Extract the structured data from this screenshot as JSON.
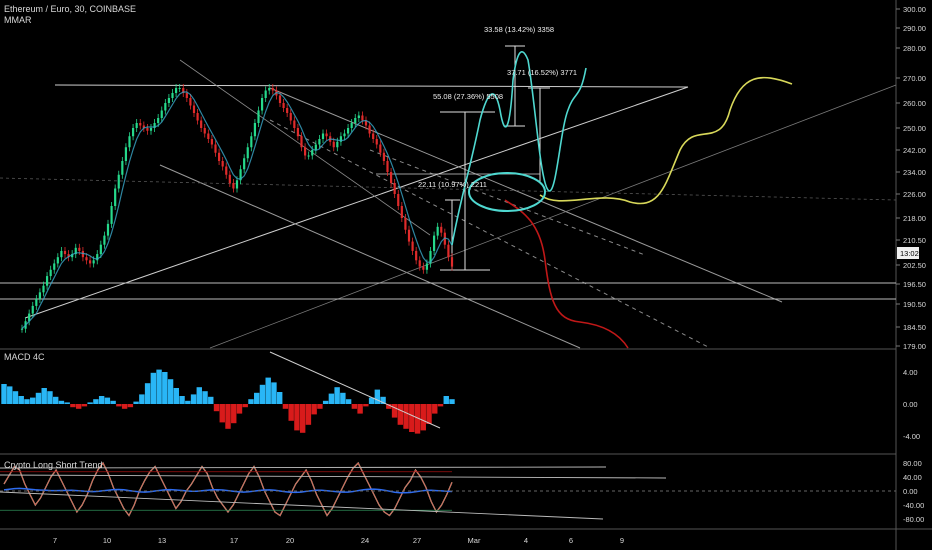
{
  "header": {
    "main_title": "Ethereum / Euro, 30, COINBASE",
    "indicator_1": "MMAR",
    "macd_title": "MACD 4C",
    "ls_title": "Crypto Long Short Trend"
  },
  "price_badge": "13:02",
  "x_axis_labels": [
    "7",
    "10",
    "13",
    "17",
    "20",
    "24",
    "27",
    "Mar",
    "4",
    "6",
    "9"
  ],
  "annotations": {
    "target_1": "33.58 (13.42%) 3358",
    "target_2": "37.71 (16.52%) 3771",
    "target_3": "55.08 (27.36%) 5508",
    "target_4": "22.11 (10.97%) 2211"
  },
  "chart_data": [
    {
      "type": "line",
      "pane": "price",
      "yticks": [
        300.0,
        290.0,
        280.0,
        270.0,
        260.0,
        250.0,
        242.0,
        234.0,
        226.0,
        218.0,
        210.5,
        202.5,
        196.5,
        190.5,
        184.5,
        179.0
      ],
      "ylim": [
        177,
        302
      ],
      "current_price": 202.5,
      "series": [
        {
          "values": [
            184,
            186,
            188,
            190,
            192,
            194,
            196,
            199,
            201,
            203,
            205,
            207,
            206,
            205,
            206,
            208,
            207,
            205,
            204,
            203,
            204,
            206,
            209,
            212,
            216,
            222,
            228,
            233,
            238,
            243,
            247,
            250,
            252,
            251,
            250,
            249,
            250,
            252,
            254,
            257,
            260,
            262,
            264,
            266,
            266,
            264,
            262,
            259,
            256,
            253,
            250,
            248,
            246,
            244,
            241,
            238,
            236,
            233,
            230,
            228,
            231,
            235,
            239,
            243,
            247,
            252,
            257,
            262,
            265,
            266,
            265,
            263,
            260,
            258,
            256,
            253,
            250,
            247,
            243,
            240,
            240,
            242,
            244,
            246,
            248,
            247,
            245,
            243,
            245,
            247,
            248,
            250,
            252,
            254,
            255,
            253,
            251,
            248,
            246,
            244,
            241,
            238,
            234,
            230,
            226,
            222,
            218,
            214,
            210,
            207,
            204,
            202,
            201,
            203,
            207,
            212,
            215,
            213,
            209,
            205,
            202
          ]
        }
      ]
    },
    {
      "type": "bar",
      "pane": "MACD 4C",
      "yticks": [
        4.0,
        0.0,
        -4.0
      ],
      "ylim": [
        -5.5,
        6.5
      ],
      "values": [
        2.5,
        2.2,
        1.6,
        1.0,
        0.6,
        0.8,
        1.4,
        2.0,
        1.6,
        0.9,
        0.4,
        0.2,
        -0.4,
        -0.6,
        -0.3,
        0.2,
        0.6,
        1.0,
        0.8,
        0.4,
        -0.3,
        -0.6,
        -0.4,
        0.3,
        1.2,
        2.6,
        3.9,
        4.3,
        4.0,
        3.1,
        2.0,
        1.0,
        0.4,
        1.2,
        2.1,
        1.6,
        0.9,
        -0.9,
        -2.3,
        -3.1,
        -2.4,
        -1.2,
        -0.4,
        0.6,
        1.4,
        2.4,
        3.3,
        2.7,
        1.5,
        -0.6,
        -2.1,
        -3.3,
        -3.6,
        -2.6,
        -1.3,
        -0.6,
        0.4,
        1.3,
        2.1,
        1.4,
        0.6,
        -0.6,
        -1.2,
        -0.3,
        0.8,
        1.8,
        0.9,
        -0.6,
        -1.7,
        -2.6,
        -3.1,
        -3.5,
        -3.7,
        -3.3,
        -2.5,
        -1.2,
        -0.3,
        1.0,
        0.6
      ]
    },
    {
      "type": "line",
      "pane": "Crypto Long Short Trend",
      "yticks": [
        80.0,
        40.0,
        0.0,
        -40.0,
        -80.0
      ],
      "ylim": [
        -100,
        100
      ],
      "series": [
        {
          "values": [
            20,
            45,
            70,
            60,
            20,
            -10,
            -40,
            -20,
            10,
            40,
            60,
            30,
            0,
            -30,
            -60,
            -40,
            -10,
            30,
            60,
            80,
            50,
            10,
            -20,
            -50,
            -70,
            -40,
            0,
            30,
            55,
            70,
            40,
            10,
            -20,
            -50,
            -30,
            0,
            20,
            45,
            70,
            50,
            10,
            -20,
            -40,
            -60,
            -40,
            -10,
            20,
            50,
            70,
            40,
            0,
            -30,
            -60,
            -70,
            -40,
            -10,
            20,
            40,
            60,
            30,
            -10,
            -40,
            -70,
            -50,
            -20,
            10,
            40,
            65,
            80,
            50,
            20,
            -10,
            -40,
            -60,
            -70,
            -50,
            -20,
            10,
            30,
            60,
            40,
            10,
            -30,
            -60,
            -40,
            -10,
            25
          ]
        }
      ]
    }
  ]
}
